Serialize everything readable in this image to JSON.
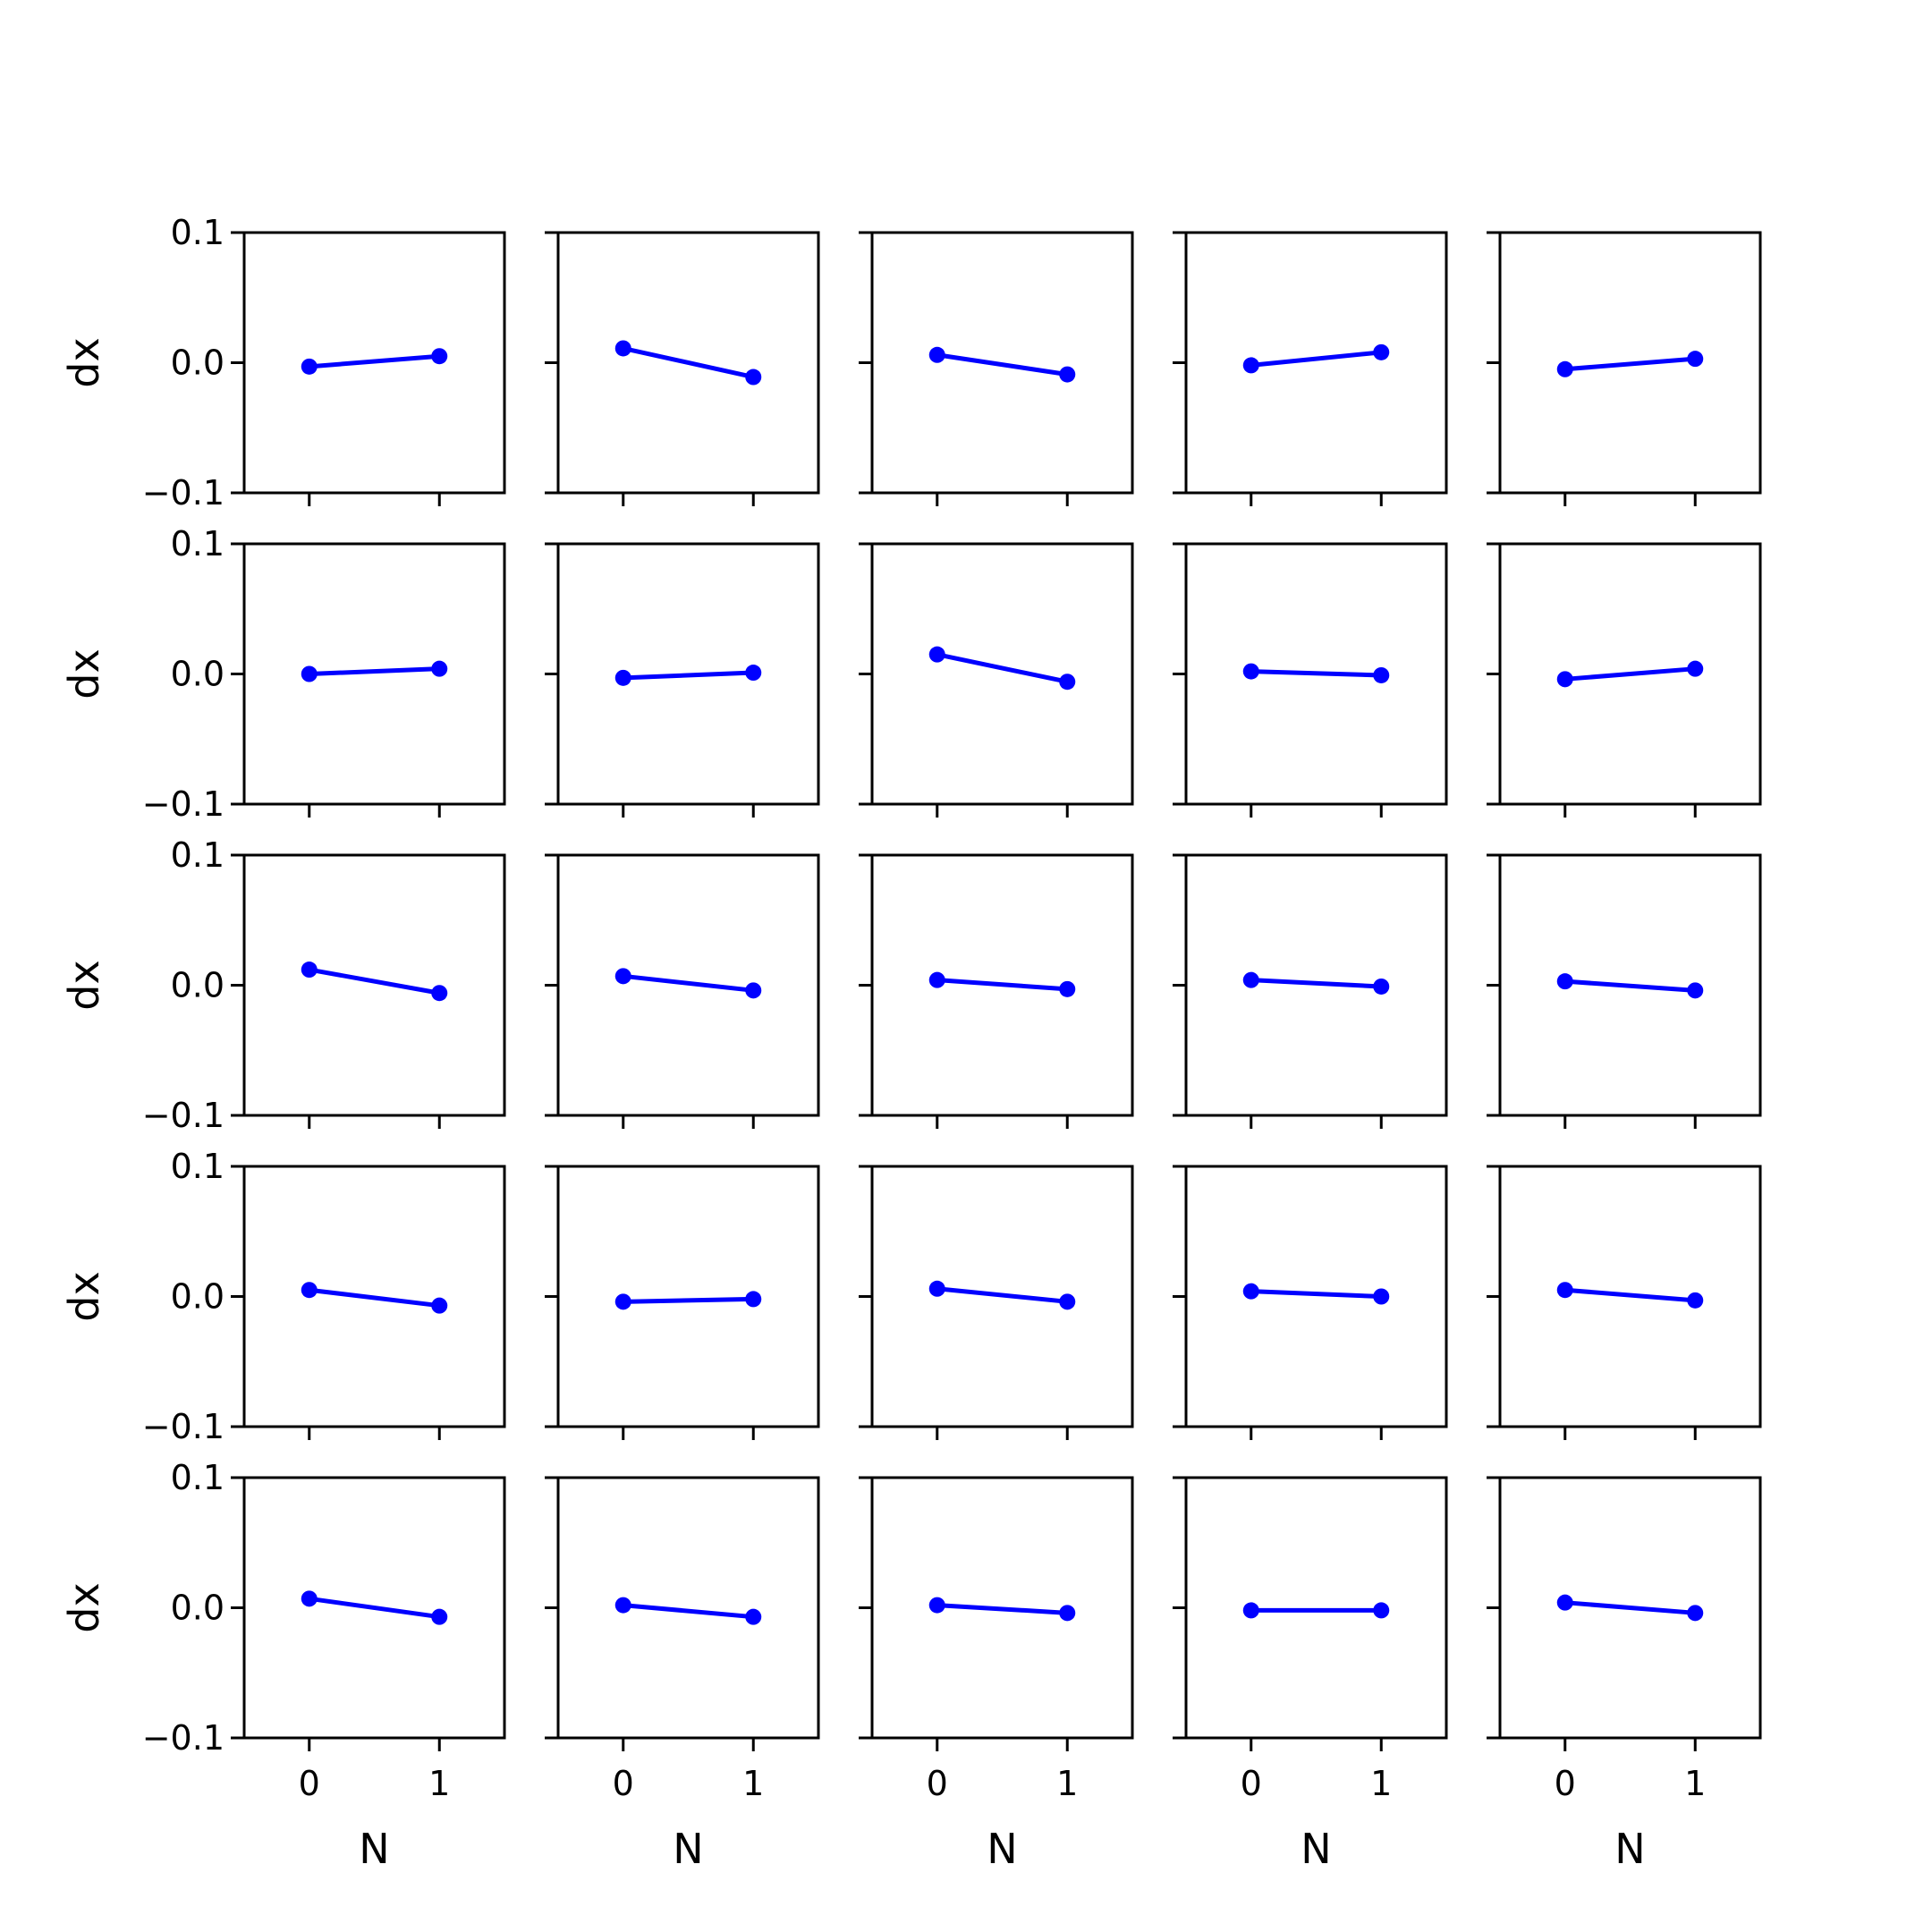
{
  "chart_data": {
    "type": "line",
    "layout": "grid 5x5",
    "xlabel": "N",
    "ylabel": "dx",
    "xticks": [
      "0",
      "1"
    ],
    "yticks": [
      "−0.1",
      "0.0",
      "0.1"
    ],
    "xlim": [
      -0.5,
      1.5
    ],
    "ylim": [
      -0.1,
      0.1
    ],
    "color": "#0000ff",
    "x": [
      0,
      1
    ],
    "panels": [
      {
        "values": [
          -0.003,
          0.005
        ]
      },
      {
        "values": [
          0.011,
          -0.011
        ]
      },
      {
        "values": [
          0.006,
          -0.009
        ]
      },
      {
        "values": [
          -0.002,
          0.008
        ]
      },
      {
        "values": [
          -0.005,
          0.003
        ]
      },
      {
        "values": [
          0.0,
          0.004
        ]
      },
      {
        "values": [
          -0.003,
          0.001
        ]
      },
      {
        "values": [
          0.015,
          -0.006
        ]
      },
      {
        "values": [
          0.002,
          -0.001
        ]
      },
      {
        "values": [
          -0.004,
          0.004
        ]
      },
      {
        "values": [
          0.012,
          -0.006
        ]
      },
      {
        "values": [
          0.007,
          -0.004
        ]
      },
      {
        "values": [
          0.004,
          -0.003
        ]
      },
      {
        "values": [
          0.004,
          -0.001
        ]
      },
      {
        "values": [
          0.003,
          -0.004
        ]
      },
      {
        "values": [
          0.005,
          -0.007
        ]
      },
      {
        "values": [
          -0.004,
          -0.002
        ]
      },
      {
        "values": [
          0.006,
          -0.004
        ]
      },
      {
        "values": [
          0.004,
          0.0
        ]
      },
      {
        "values": [
          0.005,
          -0.003
        ]
      },
      {
        "values": [
          0.007,
          -0.007
        ]
      },
      {
        "values": [
          0.002,
          -0.007
        ]
      },
      {
        "values": [
          0.002,
          -0.004
        ]
      },
      {
        "values": [
          -0.002,
          -0.002
        ]
      },
      {
        "values": [
          0.004,
          -0.004
        ]
      }
    ]
  }
}
